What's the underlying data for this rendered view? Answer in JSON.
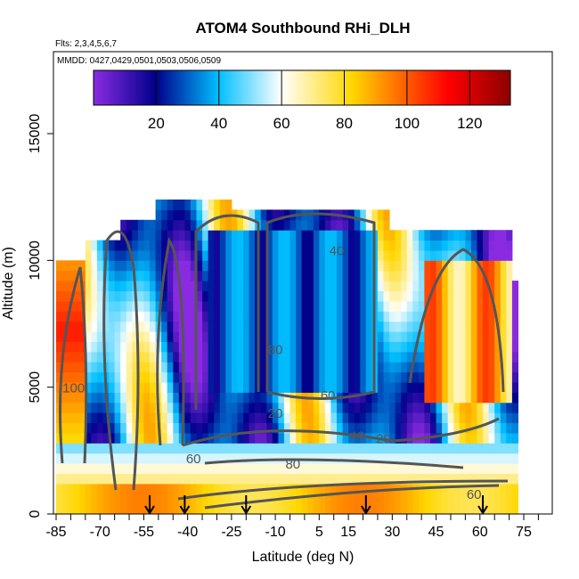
{
  "chart_data": {
    "type": "heatmap",
    "title": "ATOM4 Southbound RHi_DLH",
    "subtitle_flights": "Flts: 2,3,4,5,6,7",
    "subtitle_dates": "MMDD: 0427,0429,0501,0503,0506,0509",
    "xlabel": "Latitude (deg N)",
    "ylabel": "Altitude (m)",
    "xlim": [
      -85,
      80
    ],
    "ylim": [
      0,
      17500
    ],
    "x_ticks": [
      -85,
      -70,
      -55,
      -40,
      -25,
      -10,
      5,
      15,
      30,
      45,
      60,
      75
    ],
    "y_ticks": [
      0,
      5000,
      10000,
      15000
    ],
    "colorbar": {
      "min": 0,
      "max": 133,
      "ticks": [
        20,
        40,
        60,
        80,
        100,
        120
      ],
      "colors": [
        "#8a2be2",
        "#00008b",
        "#00bfff",
        "#ffffff",
        "#ffd700",
        "#ff0000",
        "#8b0000"
      ]
    },
    "contour_labels": [
      {
        "text": "20",
        "lat": -10,
        "alt": 3800
      },
      {
        "text": "40",
        "lat": 18,
        "alt": 2900
      },
      {
        "text": "60",
        "lat": -38,
        "alt": 2000
      },
      {
        "text": "80",
        "lat": -4,
        "alt": 1800
      },
      {
        "text": "60",
        "lat": 58,
        "alt": 600
      },
      {
        "text": "60",
        "lat": 8,
        "alt": 4500
      },
      {
        "text": "40",
        "lat": 11,
        "alt": 10200
      },
      {
        "text": "80",
        "lat": -10,
        "alt": 6300
      },
      {
        "text": "20",
        "lat": 27,
        "alt": 2800
      },
      {
        "text": "100",
        "lat": -79,
        "alt": 4800
      }
    ],
    "sounding_markers_lat": [
      -53,
      -41,
      -20,
      21,
      61
    ]
  }
}
